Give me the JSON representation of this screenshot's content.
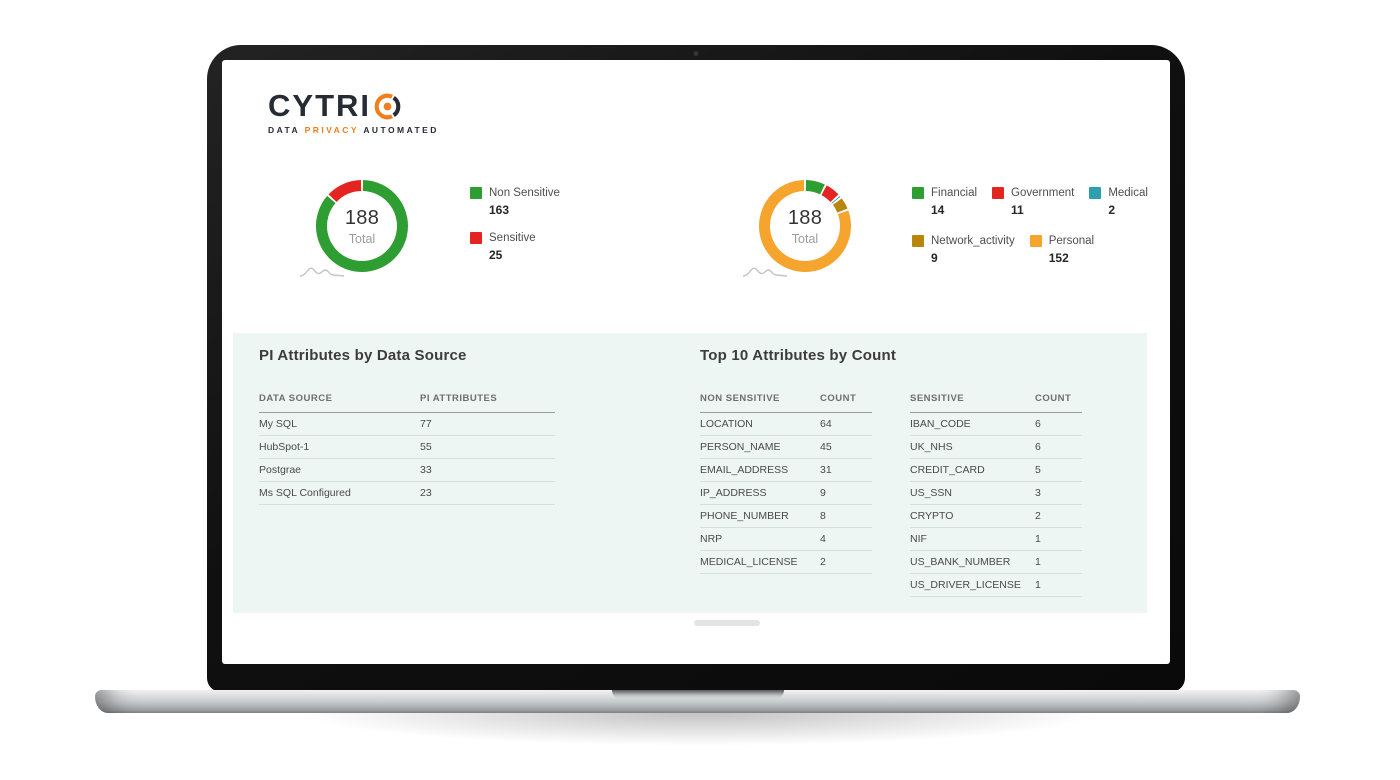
{
  "brand": {
    "wordmark_prefix": "CYTRI",
    "tagline_word1": "DATA",
    "tagline_word2": "PRIVACY",
    "tagline_word3": "AUTOMATED",
    "accent_color": "#f07e1c",
    "dark_color": "#262b34"
  },
  "sensitivity_chart": {
    "total": "188",
    "total_label": "Total",
    "series": [
      {
        "label": "Non Sensitive",
        "value": 163,
        "color": "#2e9d32"
      },
      {
        "label": "Sensitive",
        "value": 25,
        "color": "#e32420"
      }
    ]
  },
  "category_chart": {
    "total": "188",
    "total_label": "Total",
    "series": [
      {
        "label": "Financial",
        "value": 14,
        "color": "#2e9d32"
      },
      {
        "label": "Government",
        "value": 11,
        "color": "#e32420"
      },
      {
        "label": "Medical",
        "value": 2,
        "color": "#2d9fb0"
      },
      {
        "label": "Network_activity",
        "value": 9,
        "color": "#b8860b"
      },
      {
        "label": "Personal",
        "value": 152,
        "color": "#f5a52e"
      }
    ]
  },
  "data_source_section": {
    "title": "PI Attributes by Data Source",
    "headers": [
      "DATA SOURCE",
      "PI ATTRIBUTES"
    ],
    "rows": [
      [
        "My SQL",
        "77"
      ],
      [
        "HubSpot-1",
        "55"
      ],
      [
        "Postgrae",
        "33"
      ],
      [
        "Ms SQL Configured",
        "23"
      ]
    ]
  },
  "top_attributes_section": {
    "title": "Top 10 Attributes by Count",
    "non_sensitive": {
      "headers": [
        "NON SENSITIVE",
        "COUNT"
      ],
      "rows": [
        [
          "LOCATION",
          "64"
        ],
        [
          "PERSON_NAME",
          "45"
        ],
        [
          "EMAIL_ADDRESS",
          "31"
        ],
        [
          "IP_ADDRESS",
          "9"
        ],
        [
          "PHONE_NUMBER",
          "8"
        ],
        [
          "NRP",
          "4"
        ],
        [
          "MEDICAL_LICENSE",
          "2"
        ]
      ]
    },
    "sensitive": {
      "headers": [
        "SENSITIVE",
        "COUNT"
      ],
      "rows": [
        [
          "IBAN_CODE",
          "6"
        ],
        [
          "UK_NHS",
          "6"
        ],
        [
          "CREDIT_CARD",
          "5"
        ],
        [
          "US_SSN",
          "3"
        ],
        [
          "CRYPTO",
          "2"
        ],
        [
          "NIF",
          "1"
        ],
        [
          "US_BANK_NUMBER",
          "1"
        ],
        [
          "US_DRIVER_LICENSE",
          "1"
        ]
      ]
    }
  },
  "chart_data": [
    {
      "type": "pie",
      "title": "PI sensitivity split (donut)",
      "labels": [
        "Non Sensitive",
        "Sensitive"
      ],
      "values": [
        163,
        25
      ],
      "colors": [
        "#2e9d32",
        "#e32420"
      ],
      "center_text": [
        "188",
        "Total"
      ],
      "legend_position": "right"
    },
    {
      "type": "pie",
      "title": "PI categories (donut)",
      "labels": [
        "Financial",
        "Government",
        "Medical",
        "Network_activity",
        "Personal"
      ],
      "values": [
        14,
        11,
        2,
        9,
        152
      ],
      "colors": [
        "#2e9d32",
        "#e32420",
        "#2d9fb0",
        "#b8860b",
        "#f5a52e"
      ],
      "center_text": [
        "188",
        "Total"
      ],
      "legend_position": "right"
    },
    {
      "type": "table",
      "title": "PI Attributes by Data Source",
      "columns": [
        "DATA SOURCE",
        "PI ATTRIBUTES"
      ],
      "rows": [
        [
          "My SQL",
          77
        ],
        [
          "HubSpot-1",
          55
        ],
        [
          "Postgrae",
          33
        ],
        [
          "Ms SQL Configured",
          23
        ]
      ]
    },
    {
      "type": "table",
      "title": "Top 10 Attributes by Count — Non Sensitive",
      "columns": [
        "NON SENSITIVE",
        "COUNT"
      ],
      "rows": [
        [
          "LOCATION",
          64
        ],
        [
          "PERSON_NAME",
          45
        ],
        [
          "EMAIL_ADDRESS",
          31
        ],
        [
          "IP_ADDRESS",
          9
        ],
        [
          "PHONE_NUMBER",
          8
        ],
        [
          "NRP",
          4
        ],
        [
          "MEDICAL_LICENSE",
          2
        ]
      ]
    },
    {
      "type": "table",
      "title": "Top 10 Attributes by Count — Sensitive",
      "columns": [
        "SENSITIVE",
        "COUNT"
      ],
      "rows": [
        [
          "IBAN_CODE",
          6
        ],
        [
          "UK_NHS",
          6
        ],
        [
          "CREDIT_CARD",
          5
        ],
        [
          "US_SSN",
          3
        ],
        [
          "CRYPTO",
          2
        ],
        [
          "NIF",
          1
        ],
        [
          "US_BANK_NUMBER",
          1
        ],
        [
          "US_DRIVER_LICENSE",
          1
        ]
      ]
    }
  ]
}
